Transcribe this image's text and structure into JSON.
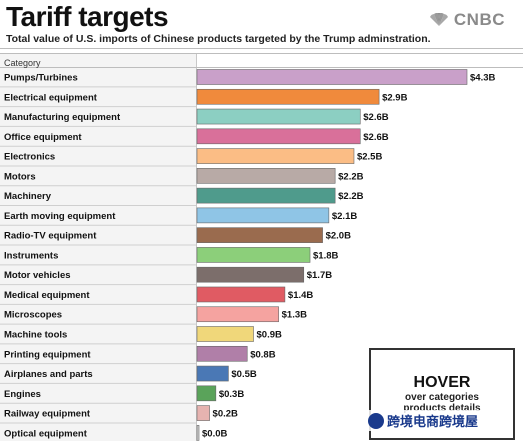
{
  "header": {
    "title": "Tariff targets",
    "subtitle": "Total value of U.S. imports of Chinese products targeted by the Trump adminstration.",
    "brand": "CNBC",
    "category_header": "Category"
  },
  "hover_box": {
    "title": "HOVER",
    "line1": "over categories",
    "line2": "products details"
  },
  "watermark": {
    "text": "跨境电商跨境屋",
    "icon": "wechat-icon"
  },
  "chart_data": {
    "type": "bar",
    "orientation": "horizontal",
    "title": "Tariff targets",
    "subtitle": "Total value of U.S. imports of Chinese products targeted by the Trump adminstration.",
    "xlabel": "",
    "ylabel": "Category",
    "xlim": [
      0,
      4.3
    ],
    "grid": false,
    "categories": [
      "Pumps/Turbines",
      "Electrical equipment",
      "Manufacturing equipment",
      "Office equipment",
      "Electronics",
      "Motors",
      "Machinery",
      "Earth moving equipment",
      "Radio-TV equipment",
      "Instruments",
      "Motor vehicles",
      "Medical equipment",
      "Microscopes",
      "Machine tools",
      "Printing equipment",
      "Airplanes and parts",
      "Engines",
      "Railway equipment",
      "Optical equipment"
    ],
    "values": [
      4.3,
      2.9,
      2.6,
      2.6,
      2.5,
      2.2,
      2.2,
      2.1,
      2.0,
      1.8,
      1.7,
      1.4,
      1.3,
      0.9,
      0.8,
      0.5,
      0.3,
      0.2,
      0.0
    ],
    "value_labels": [
      "$4.3B",
      "$2.9B",
      "$2.6B",
      "$2.6B",
      "$2.5B",
      "$2.2B",
      "$2.2B",
      "$2.1B",
      "$2.0B",
      "$1.8B",
      "$1.7B",
      "$1.4B",
      "$1.3B",
      "$0.9B",
      "$0.8B",
      "$0.5B",
      "$0.3B",
      "$0.2B",
      "$0.0B"
    ],
    "colors": [
      "#c9a0c9",
      "#f08a3c",
      "#8ccfc2",
      "#d9709a",
      "#fbbd85",
      "#b8aaa6",
      "#4f9b8c",
      "#8fc5e6",
      "#9a6b4e",
      "#8ccf7a",
      "#7c6e6b",
      "#e05b63",
      "#f5a3a0",
      "#f0d77a",
      "#b07fa8",
      "#4a78b5",
      "#5aa35a",
      "#e6b3b0",
      "#d0d0d0"
    ]
  }
}
